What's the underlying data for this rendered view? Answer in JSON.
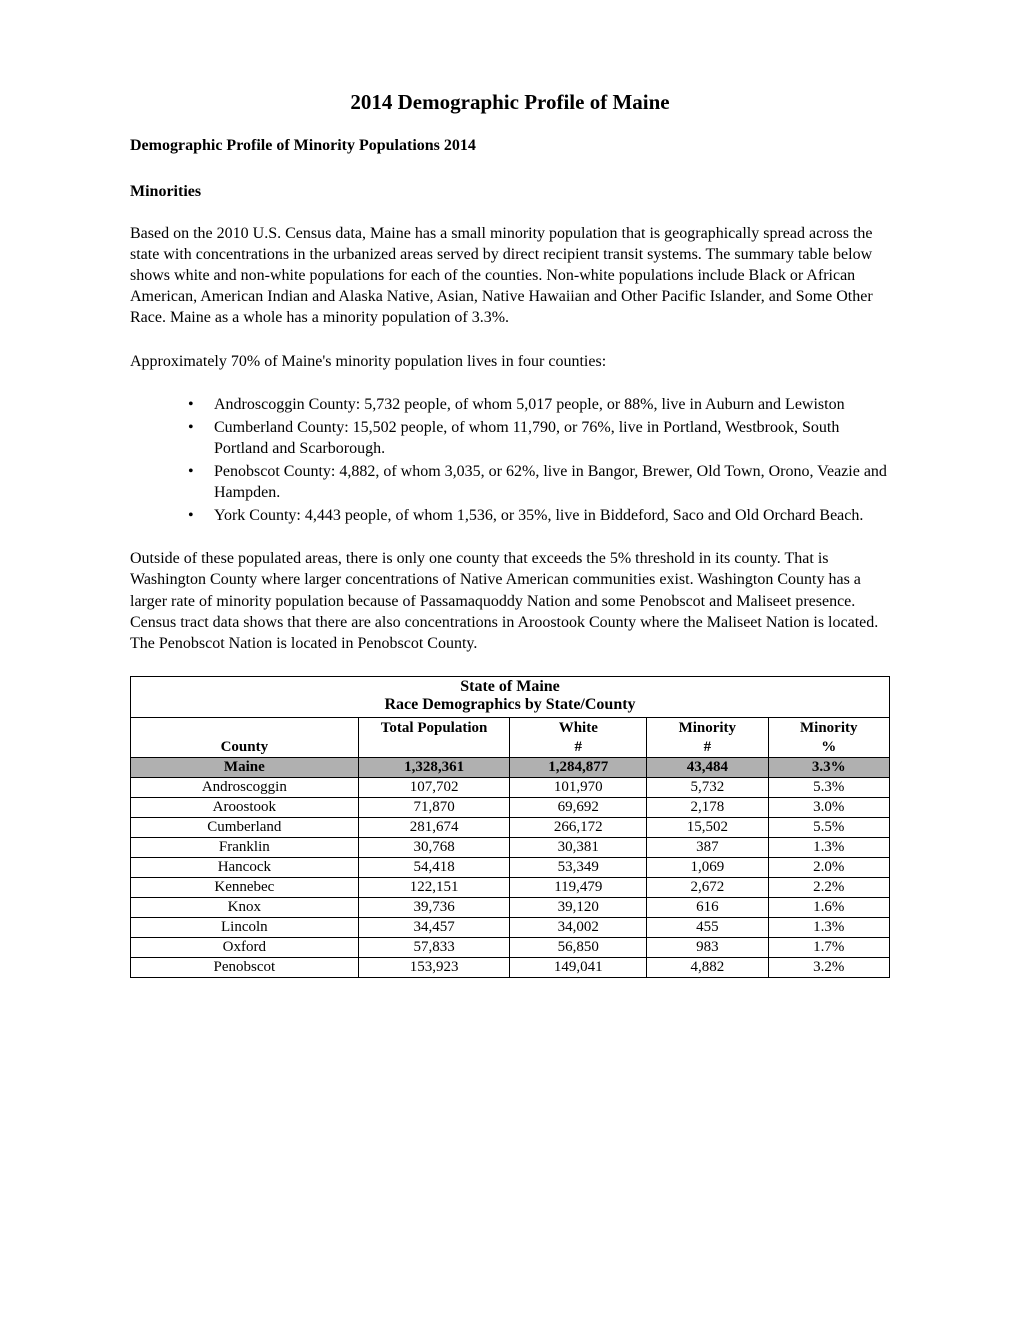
{
  "title": "2014 Demographic Profile of Maine",
  "subtitle": "Demographic Profile of Minority Populations 2014",
  "section_heading": "Minorities",
  "para1": "Based on the 2010 U.S. Census data, Maine has a small minority population that is geographically spread across the state with concentrations in the urbanized areas served by direct recipient transit systems.  The summary table below shows white and non-white populations for each of the counties. Non-white populations include Black or African American, American Indian and Alaska Native, Asian, Native Hawaiian and Other Pacific Islander, and Some Other Race.  Maine as a whole has a minority population of 3.3%.",
  "para2": "Approximately 70% of Maine's minority population lives in four counties:",
  "bullets": [
    "Androscoggin County: 5,732 people, of whom 5,017 people, or 88%, live in Auburn and Lewiston",
    "Cumberland County: 15,502 people, of whom 11,790, or 76%, live in Portland, Westbrook, South Portland and Scarborough.",
    "Penobscot County: 4,882, of whom 3,035, or 62%, live in Bangor, Brewer, Old Town, Orono, Veazie and Hampden.",
    "York County: 4,443 people, of whom 1,536, or 35%, live in Biddeford, Saco and Old Orchard Beach."
  ],
  "para3": "Outside of these populated areas, there is only one county that exceeds the 5% threshold in its county.  That is Washington County where larger concentrations of Native American communities exist. Washington County has a larger rate of minority population because of Passamaquoddy Nation and some Penobscot and Maliseet presence.  Census tract data shows that there are also concentrations in Aroostook County where the Maliseet Nation is located. The Penobscot Nation is located in Penobscot County.",
  "table": {
    "title1": "State of Maine",
    "title2": "Race Demographics by State/County",
    "headers": {
      "county": "County",
      "total_population": "Total Population",
      "white_top": "White",
      "white_bottom": "#",
      "minority_top": "Minority",
      "minority_bottom": "#",
      "minority_pct_top": "Minority",
      "minority_pct_bottom": "%"
    },
    "highlight_row": {
      "county": "Maine",
      "total_population": "1,328,361",
      "white": "1,284,877",
      "minority": "43,484",
      "minority_pct": "3.3%",
      "background_color": "#b0b0b0"
    },
    "rows": [
      {
        "county": "Androscoggin",
        "total_population": "107,702",
        "white": "101,970",
        "minority": "5,732",
        "minority_pct": "5.3%"
      },
      {
        "county": "Aroostook",
        "total_population": "71,870",
        "white": "69,692",
        "minority": "2,178",
        "minority_pct": "3.0%"
      },
      {
        "county": "Cumberland",
        "total_population": "281,674",
        "white": "266,172",
        "minority": "15,502",
        "minority_pct": "5.5%"
      },
      {
        "county": "Franklin",
        "total_population": "30,768",
        "white": "30,381",
        "minority": "387",
        "minority_pct": "1.3%"
      },
      {
        "county": "Hancock",
        "total_population": "54,418",
        "white": "53,349",
        "minority": "1,069",
        "minority_pct": "2.0%"
      },
      {
        "county": "Kennebec",
        "total_population": "122,151",
        "white": "119,479",
        "minority": "2,672",
        "minority_pct": "2.2%"
      },
      {
        "county": "Knox",
        "total_population": "39,736",
        "white": "39,120",
        "minority": "616",
        "minority_pct": "1.6%"
      },
      {
        "county": "Lincoln",
        "total_population": "34,457",
        "white": "34,002",
        "minority": "455",
        "minority_pct": "1.3%"
      },
      {
        "county": "Oxford",
        "total_population": "57,833",
        "white": "56,850",
        "minority": "983",
        "minority_pct": "1.7%"
      },
      {
        "county": "Penobscot",
        "total_population": "153,923",
        "white": "149,041",
        "minority": "4,882",
        "minority_pct": "3.2%"
      }
    ],
    "styling": {
      "border_color": "#000000",
      "border_width": 1.5,
      "highlight_bg": "#b0b0b0",
      "font_family": "Times New Roman",
      "header_font_weight": "bold",
      "cell_text_align": "center"
    }
  },
  "colors": {
    "background": "#ffffff",
    "text": "#000000"
  }
}
